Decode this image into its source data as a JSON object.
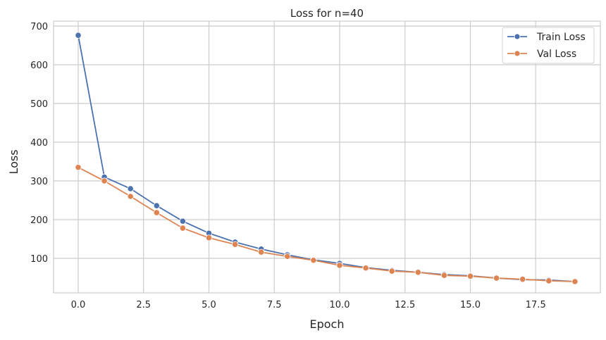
{
  "chart_data": {
    "type": "line",
    "title": "Loss for n=40",
    "xlabel": "Epoch",
    "ylabel": "Loss",
    "xlim": [
      -1,
      20
    ],
    "ylim": [
      10,
      710
    ],
    "xticks": [
      0.0,
      2.5,
      5.0,
      7.5,
      10.0,
      12.5,
      15.0,
      17.5
    ],
    "xtick_labels": [
      "0.0",
      "2.5",
      "5.0",
      "7.5",
      "10.0",
      "12.5",
      "15.0",
      "17.5"
    ],
    "yticks": [
      100,
      200,
      300,
      400,
      500,
      600,
      700
    ],
    "ytick_labels": [
      "100",
      "200",
      "300",
      "400",
      "500",
      "600",
      "700"
    ],
    "grid": true,
    "legend_position": "top-right",
    "x": [
      0,
      1,
      2,
      3,
      4,
      5,
      6,
      7,
      8,
      9,
      10,
      11,
      12,
      13,
      14,
      15,
      16,
      17,
      18,
      19
    ],
    "series": [
      {
        "name": "Train Loss",
        "color": "#4c72b0",
        "values": [
          676,
          310,
          280,
          236,
          196,
          165,
          142,
          124,
          109,
          96,
          87,
          76,
          69,
          64,
          58,
          55,
          49,
          45,
          44,
          40
        ]
      },
      {
        "name": "Val Loss",
        "color": "#dd8452",
        "values": [
          335,
          300,
          260,
          218,
          178,
          153,
          136,
          116,
          105,
          95,
          82,
          75,
          67,
          64,
          56,
          54,
          49,
          46,
          42,
          40
        ]
      }
    ]
  }
}
